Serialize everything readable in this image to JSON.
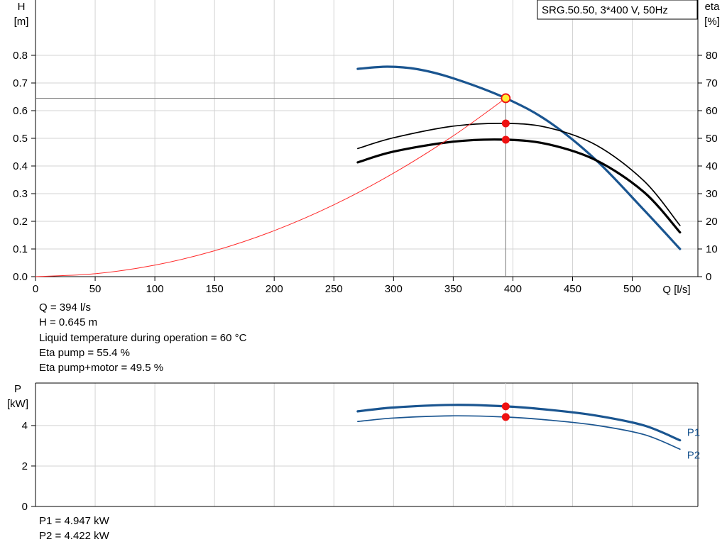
{
  "chart_data": [
    {
      "type": "line",
      "title": "SRG.50.50, 3*400 V, 50Hz",
      "xlabel": "Q [l/s]",
      "ylabel": [
        "H",
        "[m]"
      ],
      "y2label": [
        "eta",
        "[%]"
      ],
      "xlim": [
        0,
        555
      ],
      "ylim": [
        0,
        0.8
      ],
      "y2lim": [
        0,
        80
      ],
      "xticks": [
        0,
        50,
        100,
        150,
        200,
        250,
        300,
        350,
        400,
        450,
        500
      ],
      "yticks": [
        0.0,
        0.1,
        0.2,
        0.3,
        0.4,
        0.5,
        0.6,
        0.7,
        0.8
      ],
      "yticklabels": [
        "0.0",
        "0.1",
        "0.2",
        "0.3",
        "0.4",
        "0.5",
        "0.6",
        "0.7",
        "0.8"
      ],
      "y2ticks": [
        0,
        10,
        20,
        30,
        40,
        50,
        60,
        70,
        80
      ],
      "grid": true,
      "series": [
        {
          "key": "H",
          "axis": "left",
          "color": "#1a5590",
          "width": 3.2,
          "x": [
            270,
            295,
            320,
            350,
            394,
            430,
            470,
            510,
            540
          ],
          "y": [
            0.751,
            0.759,
            0.75,
            0.717,
            0.645,
            0.56,
            0.42,
            0.24,
            0.1
          ]
        },
        {
          "key": "eta_pump",
          "axis": "right",
          "color": "#000000",
          "width": 1.7,
          "x": [
            270,
            300,
            350,
            394,
            430,
            470,
            510,
            540
          ],
          "y": [
            46.3,
            50.2,
            54.4,
            55.4,
            53.8,
            47.5,
            34.5,
            18.5
          ]
        },
        {
          "key": "eta_total",
          "axis": "right",
          "color": "#000000",
          "width": 3.2,
          "x": [
            270,
            300,
            350,
            394,
            430,
            470,
            510,
            540
          ],
          "y": [
            41.3,
            45.2,
            48.8,
            49.5,
            47.8,
            42.0,
            30.5,
            16.0
          ]
        },
        {
          "key": "system",
          "axis": "left",
          "color": "#ff2a2a",
          "width": 1,
          "x": [
            0,
            50,
            100,
            150,
            200,
            250,
            300,
            350,
            394
          ],
          "y": [
            0.0,
            0.0104,
            0.0416,
            0.0935,
            0.1662,
            0.2597,
            0.374,
            0.509,
            0.645
          ]
        }
      ],
      "operating_point": {
        "x": 394,
        "y": 0.645
      },
      "markers": [
        {
          "x": 394,
          "axis": "right",
          "y": 55.4
        },
        {
          "x": 394,
          "axis": "right",
          "y": 49.5
        }
      ]
    },
    {
      "type": "line",
      "xlim": [
        0,
        555
      ],
      "ylim": [
        0,
        6.1
      ],
      "ylabel": [
        "P",
        "[kW]"
      ],
      "yticks": [
        0,
        2,
        4
      ],
      "grid": true,
      "series": [
        {
          "name": "P1",
          "color": "#1a5590",
          "width": 3.2,
          "x": [
            270,
            300,
            350,
            394,
            430,
            470,
            510,
            540
          ],
          "y": [
            4.7,
            4.89,
            5.02,
            4.947,
            4.78,
            4.49,
            4.0,
            3.27
          ]
        },
        {
          "name": "P2",
          "color": "#1a5590",
          "width": 1.7,
          "x": [
            270,
            300,
            350,
            394,
            430,
            470,
            510,
            540
          ],
          "y": [
            4.2,
            4.37,
            4.48,
            4.422,
            4.27,
            4.01,
            3.55,
            2.83
          ]
        }
      ],
      "markers": [
        {
          "x": 394,
          "y": 4.947
        },
        {
          "x": 394,
          "y": 4.422
        }
      ]
    }
  ],
  "info": {
    "q": "Q = 394 l/s",
    "h": "H = 0.645 m",
    "temp": "Liquid temperature during operation = 60 °C",
    "eta_pump": "Eta pump = 55.4 %",
    "eta_total": "Eta pump+motor = 49.5 %",
    "p1": "P1 = 4.947 kW",
    "p2": "P2 = 4.422 kW"
  },
  "colors": {
    "blue": "#1a5590",
    "red": "#ff2a2a",
    "marker": "#ee1111",
    "op_fill": "#ffee33",
    "grid": "#d3d3d3"
  }
}
